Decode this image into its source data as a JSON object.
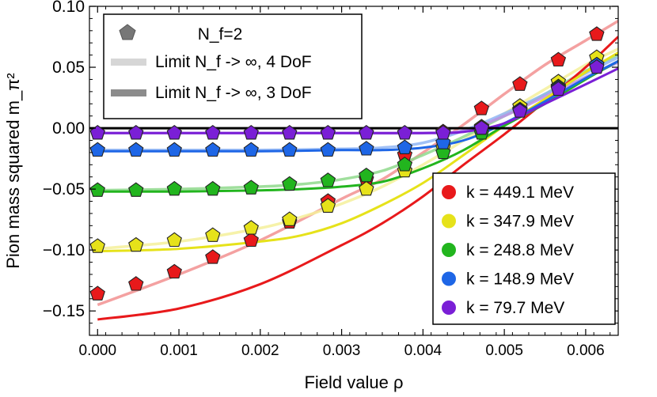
{
  "chart_data": {
    "type": "scatter",
    "title": "",
    "xlabel": "Field value ρ",
    "ylabel": "Pion mass squared m_π²",
    "xlim": [
      -0.0001,
      0.0064
    ],
    "ylim": [
      -0.17,
      0.1
    ],
    "x_ticks": [
      0.0,
      0.001,
      0.002,
      0.003,
      0.004,
      0.005,
      0.006
    ],
    "x_tick_labels": [
      "0.000",
      "0.001",
      "0.002",
      "0.003",
      "0.004",
      "0.005",
      "0.006"
    ],
    "y_ticks": [
      -0.15,
      -0.1,
      -0.05,
      0.0,
      0.05,
      0.1
    ],
    "y_tick_labels": [
      "−0.15",
      "−0.10",
      "−0.05",
      "0.00",
      "0.05",
      "0.10"
    ],
    "grid": false,
    "x": [
      0.0,
      0.000472,
      0.000944,
      0.001416,
      0.001888,
      0.00236,
      0.002832,
      0.003304,
      0.003776,
      0.004248,
      0.00472,
      0.005192,
      0.005664,
      0.006136
    ],
    "series": [
      {
        "name": "k = 449.1 MeV",
        "color": "#e8191b",
        "faint_color": "#f29090",
        "points": [
          -0.136,
          -0.128,
          -0.118,
          -0.106,
          -0.092,
          -0.077,
          -0.06,
          -0.042,
          -0.022,
          -0.003,
          0.016,
          0.036,
          0.056,
          0.077
        ],
        "curve_4dof": [
          [
            0.0,
            -0.145
          ],
          [
            0.001,
            -0.12
          ],
          [
            0.002,
            -0.092
          ],
          [
            0.003,
            -0.058
          ],
          [
            0.0035,
            -0.042
          ],
          [
            0.004,
            -0.02
          ],
          [
            0.0045,
            0.003
          ],
          [
            0.005,
            0.028
          ],
          [
            0.0055,
            0.052
          ],
          [
            0.006,
            0.072
          ],
          [
            0.0064,
            0.088
          ]
        ],
        "curve_3dof": [
          [
            0.0,
            -0.157
          ],
          [
            0.001,
            -0.148
          ],
          [
            0.002,
            -0.128
          ],
          [
            0.003,
            -0.096
          ],
          [
            0.0035,
            -0.078
          ],
          [
            0.004,
            -0.056
          ],
          [
            0.0045,
            -0.03
          ],
          [
            0.005,
            -0.005
          ],
          [
            0.0055,
            0.022
          ],
          [
            0.006,
            0.05
          ],
          [
            0.0064,
            0.075
          ]
        ]
      },
      {
        "name": "k = 347.9 MeV",
        "color": "#e6e21a",
        "faint_color": "#f5f09a",
        "points": [
          -0.097,
          -0.096,
          -0.092,
          -0.088,
          -0.082,
          -0.075,
          -0.064,
          -0.05,
          -0.035,
          -0.016,
          0.001,
          0.018,
          0.038,
          0.058
        ],
        "curve_4dof": [
          [
            0.0,
            -0.099
          ],
          [
            0.001,
            -0.093
          ],
          [
            0.002,
            -0.082
          ],
          [
            0.0025,
            -0.073
          ],
          [
            0.003,
            -0.062
          ],
          [
            0.0035,
            -0.048
          ],
          [
            0.004,
            -0.03
          ],
          [
            0.0045,
            -0.01
          ],
          [
            0.005,
            0.012
          ],
          [
            0.0055,
            0.032
          ],
          [
            0.006,
            0.052
          ],
          [
            0.0064,
            0.065
          ]
        ],
        "curve_3dof": [
          [
            0.0,
            -0.101
          ],
          [
            0.001,
            -0.099
          ],
          [
            0.002,
            -0.093
          ],
          [
            0.0025,
            -0.088
          ],
          [
            0.003,
            -0.078
          ],
          [
            0.0035,
            -0.063
          ],
          [
            0.004,
            -0.045
          ],
          [
            0.0045,
            -0.022
          ],
          [
            0.005,
            0.002
          ],
          [
            0.0055,
            0.024
          ],
          [
            0.006,
            0.046
          ],
          [
            0.0064,
            0.062
          ]
        ]
      },
      {
        "name": "k = 248.8 MeV",
        "color": "#22b51e",
        "faint_color": "#8fd98c",
        "points": [
          -0.051,
          -0.051,
          -0.05,
          -0.05,
          -0.049,
          -0.046,
          -0.043,
          -0.039,
          -0.03,
          -0.02,
          -0.004,
          0.015,
          0.034,
          0.052
        ],
        "curve_4dof": [
          [
            0.0,
            -0.051
          ],
          [
            0.001,
            -0.05
          ],
          [
            0.002,
            -0.048
          ],
          [
            0.0025,
            -0.046
          ],
          [
            0.003,
            -0.042
          ],
          [
            0.0035,
            -0.035
          ],
          [
            0.004,
            -0.022
          ],
          [
            0.0045,
            -0.007
          ],
          [
            0.005,
            0.01
          ],
          [
            0.0055,
            0.028
          ],
          [
            0.006,
            0.047
          ],
          [
            0.0064,
            0.06
          ]
        ],
        "curve_3dof": [
          [
            0.0,
            -0.052
          ],
          [
            0.001,
            -0.052
          ],
          [
            0.002,
            -0.051
          ],
          [
            0.0025,
            -0.05
          ],
          [
            0.003,
            -0.048
          ],
          [
            0.0035,
            -0.044
          ],
          [
            0.004,
            -0.033
          ],
          [
            0.0045,
            -0.018
          ],
          [
            0.005,
            0.002
          ],
          [
            0.0055,
            0.02
          ],
          [
            0.006,
            0.04
          ],
          [
            0.0064,
            0.055
          ]
        ]
      },
      {
        "name": "k = 148.9 MeV",
        "color": "#1e66e6",
        "faint_color": "#8fb5f5",
        "points": [
          -0.018,
          -0.018,
          -0.018,
          -0.018,
          -0.018,
          -0.018,
          -0.018,
          -0.017,
          -0.016,
          -0.012,
          0.0,
          0.015,
          0.033,
          0.052
        ],
        "curve_4dof": [
          [
            0.0,
            -0.018
          ],
          [
            0.001,
            -0.018
          ],
          [
            0.002,
            -0.018
          ],
          [
            0.003,
            -0.017
          ],
          [
            0.0035,
            -0.016
          ],
          [
            0.004,
            -0.012
          ],
          [
            0.0045,
            -0.002
          ],
          [
            0.005,
            0.012
          ],
          [
            0.0055,
            0.028
          ],
          [
            0.006,
            0.045
          ],
          [
            0.0064,
            0.058
          ]
        ],
        "curve_3dof": [
          [
            0.0,
            -0.019
          ],
          [
            0.001,
            -0.019
          ],
          [
            0.002,
            -0.019
          ],
          [
            0.003,
            -0.018
          ],
          [
            0.0035,
            -0.018
          ],
          [
            0.004,
            -0.016
          ],
          [
            0.0045,
            -0.01
          ],
          [
            0.005,
            0.004
          ],
          [
            0.0055,
            0.022
          ],
          [
            0.006,
            0.041
          ],
          [
            0.0064,
            0.055
          ]
        ]
      },
      {
        "name": "k = 79.7 MeV",
        "color": "#7a1fd6",
        "faint_color": "#bb8fea",
        "points": [
          -0.004,
          -0.004,
          -0.004,
          -0.004,
          -0.004,
          -0.004,
          -0.004,
          -0.004,
          -0.004,
          -0.004,
          0.0,
          0.014,
          0.032,
          0.05
        ],
        "curve_4dof": [
          [
            0.0,
            -0.004
          ],
          [
            0.001,
            -0.004
          ],
          [
            0.002,
            -0.004
          ],
          [
            0.003,
            -0.004
          ],
          [
            0.004,
            -0.004
          ],
          [
            0.0045,
            -0.002
          ],
          [
            0.005,
            0.01
          ],
          [
            0.0055,
            0.026
          ],
          [
            0.006,
            0.042
          ],
          [
            0.0064,
            0.054
          ]
        ],
        "curve_3dof": [
          [
            0.0,
            -0.004
          ],
          [
            0.001,
            -0.004
          ],
          [
            0.002,
            -0.004
          ],
          [
            0.003,
            -0.004
          ],
          [
            0.004,
            -0.004
          ],
          [
            0.0045,
            -0.003
          ],
          [
            0.005,
            0.004
          ],
          [
            0.0055,
            0.02
          ],
          [
            0.006,
            0.036
          ],
          [
            0.0064,
            0.049
          ]
        ]
      }
    ],
    "legend_markers": {
      "title_marker": "pentagon",
      "items": [
        "N_f=2",
        "Limit N_f -> ∞, 4 DoF",
        "Limit N_f -> ∞, 3 DoF"
      ],
      "position": "top-left"
    },
    "legend_series_position": "bottom-right",
    "reference_line": 0.0
  }
}
